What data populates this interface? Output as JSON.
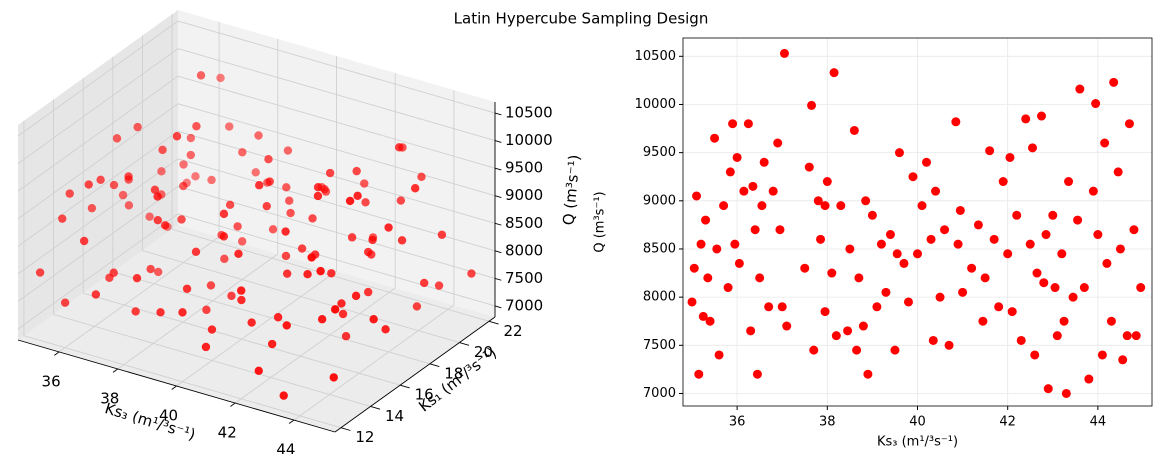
{
  "title": "Latin Hypercube Sampling Design",
  "chart_data": [
    {
      "type": "scatter3d",
      "xlabel": "Ks₃ (m¹/³s⁻¹)",
      "ylabel": "Ks₁ (m¹/³s⁻¹)",
      "zlabel": "Q (m³s⁻¹)",
      "color": "#ff0000",
      "xlim": [
        34.6,
        45.4
      ],
      "ylim": [
        11.6,
        22.4
      ],
      "zlim": [
        6800,
        10700
      ],
      "xticks": [
        36,
        38,
        40,
        42,
        44
      ],
      "yticks": [
        12,
        14,
        16,
        18,
        20,
        22
      ],
      "zticks": [
        7000,
        7500,
        8000,
        8500,
        9000,
        9500,
        10000,
        10500
      ],
      "x": [
        35.0,
        35.05,
        35.1,
        35.15,
        35.2,
        35.25,
        35.3,
        35.4,
        35.5,
        35.55,
        35.6,
        35.7,
        35.8,
        35.85,
        35.9,
        35.95,
        36.0,
        36.05,
        36.15,
        36.25,
        36.3,
        36.35,
        36.4,
        36.45,
        36.5,
        36.6,
        36.7,
        36.8,
        36.9,
        36.95,
        37.0,
        37.05,
        37.1,
        37.5,
        37.6,
        37.65,
        37.7,
        37.8,
        37.85,
        37.95,
        38.0,
        38.1,
        38.15,
        38.2,
        38.3,
        38.45,
        38.5,
        38.6,
        38.65,
        38.7,
        38.8,
        38.85,
        38.9,
        39.0,
        39.1,
        39.2,
        39.3,
        39.4,
        39.5,
        39.6,
        39.7,
        39.8,
        39.9,
        40.0,
        40.1,
        40.2,
        40.3,
        40.35,
        40.4,
        40.5,
        40.6,
        40.7,
        40.85,
        40.9,
        41.0,
        41.2,
        41.35,
        41.45,
        41.5,
        41.6,
        41.7,
        41.8,
        41.9,
        42.0,
        42.05,
        42.1,
        42.2,
        42.3,
        42.4,
        42.5,
        42.55,
        42.6,
        42.75,
        42.8,
        42.85,
        42.9,
        43.0,
        43.05,
        43.1,
        43.2,
        43.3,
        43.35,
        43.45,
        43.55,
        43.6,
        43.7,
        43.8,
        43.9,
        43.95,
        44.0,
        44.1,
        44.15,
        44.2,
        44.3,
        44.35,
        44.45,
        44.5,
        44.55,
        44.65,
        44.7,
        44.8,
        44.85,
        44.95,
        35.35,
        36.55,
        37.95,
        39.55,
        40.95,
        42.65,
        43.25
      ],
      "y": [
        12.3,
        17.8,
        14.1,
        20.6,
        15.4,
        21.7,
        13.2,
        18.9,
        16.5,
        19.4,
        12.8,
        15.9,
        21.2,
        14.7,
        17.1,
        20.1,
        13.6,
        18.4,
        16.0,
        22.0,
        14.4,
        19.8,
        12.5,
        17.4,
        20.9,
        15.1,
        13.9,
        21.5,
        16.8,
        18.1,
        12.1,
        19.1,
        15.6,
        21.9,
        14.9,
        17.6,
        13.4,
        20.4,
        16.2,
        18.7,
        21.1,
        12.7,
        15.3,
        19.6,
        14.2,
        17.9,
        20.7,
        13.1,
        16.6,
        18.3,
        12.9,
        21.4,
        15.8,
        17.2,
        19.9,
        14.5,
        13.7,
        20.2,
        16.3,
        18.6,
        22.0,
        12.4,
        15.0,
        19.3,
        14.6,
        17.5,
        21.0,
        13.3,
        16.9,
        18.0,
        20.5,
        12.2,
        15.5,
        19.0,
        14.0,
        17.7,
        21.6,
        13.8,
        16.1,
        18.8,
        12.6,
        21.3,
        15.2,
        17.0,
        19.7,
        14.3,
        20.0,
        13.5,
        16.4,
        18.5,
        21.8,
        12.0,
        15.7,
        19.2,
        14.8,
        17.3,
        20.8,
        13.0,
        16.7,
        18.2,
        12.3,
        21.5,
        15.9,
        17.8,
        19.5,
        14.1,
        20.3,
        13.6,
        16.0,
        18.9,
        21.2,
        12.5,
        15.4,
        19.8,
        14.7,
        17.1,
        20.6,
        13.2,
        16.5,
        18.4,
        12.8,
        21.9,
        15.1,
        17.6,
        19.4,
        14.4,
        20.1,
        13.9,
        16.8,
        18.1
      ],
      "z": [
        7950,
        8300,
        9050,
        7200,
        8550,
        7800,
        8800,
        7750,
        9650,
        8500,
        7400,
        8950,
        8100,
        9300,
        9800,
        8550,
        9450,
        8350,
        9100,
        9800,
        7650,
        9150,
        8700,
        7200,
        8200,
        9400,
        7900,
        9100,
        9600,
        8700,
        7900,
        10530,
        7700,
        8300,
        9350,
        9990,
        7450,
        9000,
        8600,
        7850,
        9200,
        8250,
        10330,
        7600,
        8950,
        7650,
        8500,
        9730,
        7450,
        8200,
        7700,
        9000,
        7200,
        8850,
        7900,
        8550,
        8050,
        8650,
        7450,
        9500,
        8350,
        7950,
        9250,
        8450,
        8950,
        9400,
        8600,
        7550,
        9100,
        8000,
        8700,
        7500,
        9820,
        8550,
        8050,
        8300,
        8750,
        7750,
        8200,
        9520,
        8600,
        7900,
        9200,
        8450,
        9450,
        7850,
        8850,
        7550,
        9850,
        8550,
        9550,
        7400,
        9880,
        8150,
        8650,
        7050,
        8850,
        8100,
        7600,
        8450,
        7000,
        9200,
        8000,
        8800,
        10160,
        8100,
        7150,
        9100,
        10010,
        8650,
        7400,
        9600,
        8350,
        7750,
        10230,
        9300,
        8500,
        7350,
        7600,
        9800,
        8700,
        7600,
        8100,
        8200,
        8950,
        8950,
        8450,
        8900,
        8250,
        7750
      ]
    },
    {
      "type": "scatter",
      "xlabel": "Ks₃ (m¹/³s⁻¹)",
      "ylabel": "Q (m³s⁻¹)",
      "color": "#ff0000",
      "grid": true,
      "xlim": [
        34.8,
        45.2
      ],
      "ylim": [
        6870,
        10690
      ],
      "xticks": [
        36,
        38,
        40,
        42,
        44
      ],
      "yticks": [
        7000,
        7500,
        8000,
        8500,
        9000,
        9500,
        10000,
        10500
      ],
      "x": [
        35.0,
        35.05,
        35.1,
        35.15,
        35.2,
        35.25,
        35.3,
        35.4,
        35.5,
        35.55,
        35.6,
        35.7,
        35.8,
        35.85,
        35.9,
        35.95,
        36.0,
        36.05,
        36.15,
        36.25,
        36.3,
        36.35,
        36.4,
        36.45,
        36.5,
        36.6,
        36.7,
        36.8,
        36.9,
        36.95,
        37.0,
        37.05,
        37.1,
        37.5,
        37.6,
        37.65,
        37.7,
        37.8,
        37.85,
        37.95,
        38.0,
        38.1,
        38.15,
        38.2,
        38.3,
        38.45,
        38.5,
        38.6,
        38.65,
        38.7,
        38.8,
        38.85,
        38.9,
        39.0,
        39.1,
        39.2,
        39.3,
        39.4,
        39.5,
        39.6,
        39.7,
        39.8,
        39.9,
        40.0,
        40.1,
        40.2,
        40.3,
        40.35,
        40.4,
        40.5,
        40.6,
        40.7,
        40.85,
        40.9,
        41.0,
        41.2,
        41.35,
        41.45,
        41.5,
        41.6,
        41.7,
        41.8,
        41.9,
        42.0,
        42.05,
        42.1,
        42.2,
        42.3,
        42.4,
        42.5,
        42.55,
        42.6,
        42.75,
        42.8,
        42.85,
        42.9,
        43.0,
        43.05,
        43.1,
        43.2,
        43.3,
        43.35,
        43.45,
        43.55,
        43.6,
        43.7,
        43.8,
        43.9,
        43.95,
        44.0,
        44.1,
        44.15,
        44.2,
        44.3,
        44.35,
        44.45,
        44.5,
        44.55,
        44.65,
        44.7,
        44.8,
        44.85,
        44.95,
        35.35,
        36.55,
        37.95,
        39.55,
        40.95,
        42.65,
        43.25
      ],
      "values": [
        7950,
        8300,
        9050,
        7200,
        8550,
        7800,
        8800,
        7750,
        9650,
        8500,
        7400,
        8950,
        8100,
        9300,
        9800,
        8550,
        9450,
        8350,
        9100,
        9800,
        7650,
        9150,
        8700,
        7200,
        8200,
        9400,
        7900,
        9100,
        9600,
        8700,
        7900,
        10530,
        7700,
        8300,
        9350,
        9990,
        7450,
        9000,
        8600,
        7850,
        9200,
        8250,
        10330,
        7600,
        8950,
        7650,
        8500,
        9730,
        7450,
        8200,
        7700,
        9000,
        7200,
        8850,
        7900,
        8550,
        8050,
        8650,
        7450,
        9500,
        8350,
        7950,
        9250,
        8450,
        8950,
        9400,
        8600,
        7550,
        9100,
        8000,
        8700,
        7500,
        9820,
        8550,
        8050,
        8300,
        8750,
        7750,
        8200,
        9520,
        8600,
        7900,
        9200,
        8450,
        9450,
        7850,
        8850,
        7550,
        9850,
        8550,
        9550,
        7400,
        9880,
        8150,
        8650,
        7050,
        8850,
        8100,
        7600,
        8450,
        7000,
        9200,
        8000,
        8800,
        10160,
        8100,
        7150,
        9100,
        10010,
        8650,
        7400,
        9600,
        8350,
        7750,
        10230,
        9300,
        8500,
        7350,
        7600,
        9800,
        8700,
        7600,
        8100,
        8200,
        8950,
        8950,
        8450,
        8900,
        8250,
        7750
      ]
    }
  ]
}
